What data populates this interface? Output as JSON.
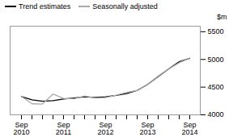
{
  "chart_data": {
    "type": "line",
    "ylabel": "$m",
    "categories": [
      "Sep\n2010",
      null,
      null,
      null,
      "Sep\n2011",
      null,
      null,
      null,
      "Sep\n2012",
      null,
      null,
      null,
      "Sep\n2013",
      null,
      null,
      null,
      "Sep\n2014"
    ],
    "series": [
      {
        "name": "Trend estimates",
        "color": "#000000",
        "values": [
          4330,
          4270,
          4245,
          4255,
          4285,
          4305,
          4325,
          4315,
          4325,
          4350,
          4385,
          4440,
          4550,
          4690,
          4830,
          4960,
          5020
        ]
      },
      {
        "name": "Seasonally adjusted",
        "color": "#aaaaaa",
        "values": [
          4330,
          4200,
          4195,
          4375,
          4295,
          4290,
          4340,
          4305,
          4310,
          4355,
          4405,
          4440,
          4550,
          4700,
          4830,
          4940,
          5025
        ]
      }
    ],
    "ylim": [
      4000,
      5600
    ],
    "yticks": [
      4000,
      4500,
      5000,
      5500
    ],
    "legend": "upper left",
    "grid": false
  }
}
